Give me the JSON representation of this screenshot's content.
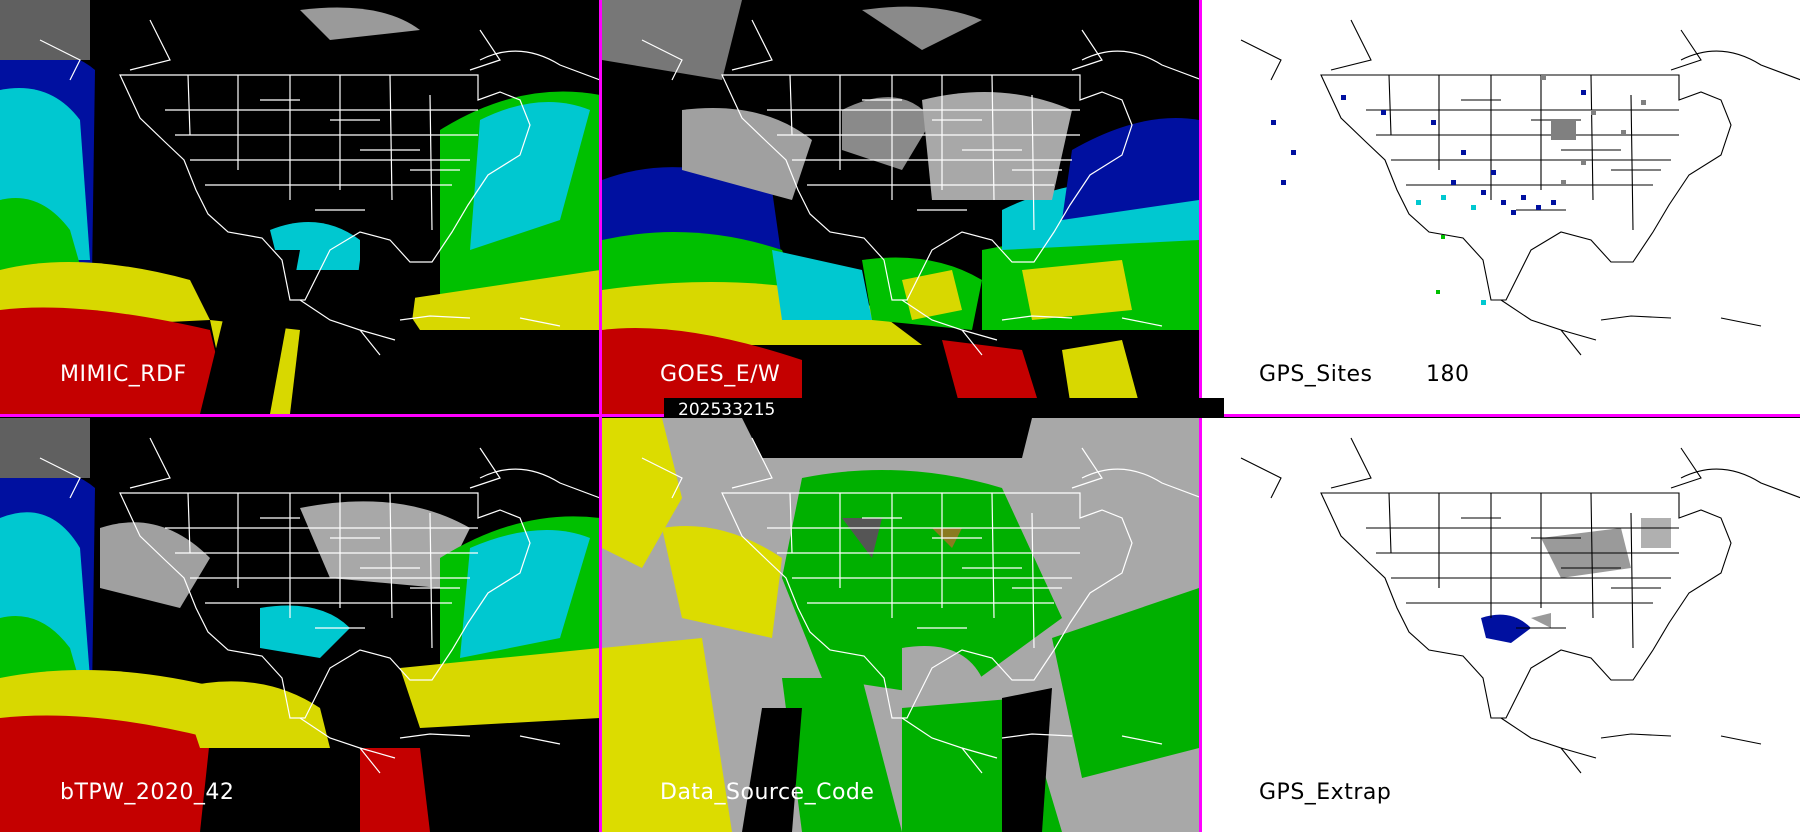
{
  "panels": {
    "mimic": {
      "label": "MIMIC_RDF"
    },
    "goes": {
      "label": "GOES_E/W"
    },
    "gps_sites": {
      "label": "GPS_Sites",
      "count": "180"
    },
    "btpw": {
      "label": "bTPW_2020_42"
    },
    "data_source": {
      "label": "Data_Source_Code"
    },
    "gps_extrap": {
      "label": "GPS_Extrap"
    }
  },
  "timestamp": "202533215",
  "colors": {
    "separator": "#ff00ff",
    "map_lines_dark": "#ffffff",
    "map_lines_light": "#000000",
    "tpw_red": "#c40000",
    "tpw_yellow": "#d8d800",
    "tpw_green": "#00c000",
    "tpw_cyan": "#00c8d0",
    "tpw_blue": "#0010a0",
    "tpw_gray": "#a0a0a0",
    "source_yellow": "#dcdc00",
    "source_green": "#00b000",
    "source_gray": "#a8a8a8"
  }
}
